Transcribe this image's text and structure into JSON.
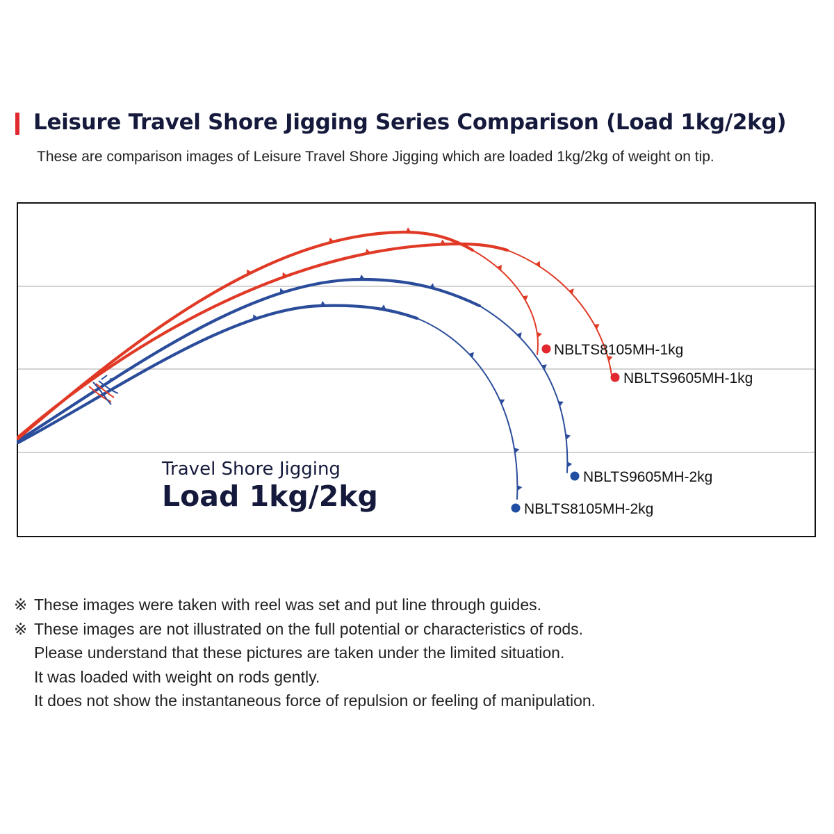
{
  "header": {
    "title": "Leisure Travel Shore Jigging Series Comparison (Load 1kg/2kg)",
    "subtitle": "These are comparison images of Leisure Travel Shore Jigging which are loaded 1kg/2kg of weight on tip.",
    "accent_color": "#e0282e"
  },
  "chart_data": {
    "type": "line",
    "grid": "horizontal",
    "caption": {
      "line1": "Travel Shore Jigging",
      "line2": "Load 1kg/2kg"
    },
    "series": [
      {
        "name": "NBLTS8105MH-1kg",
        "color": "#e03a26",
        "marker_color": "#e0282e"
      },
      {
        "name": "NBLTS9605MH-1kg",
        "color": "#e03a26",
        "marker_color": "#e0282e"
      },
      {
        "name": "NBLTS9605MH-2kg",
        "color": "#2a4c9a",
        "marker_color": "#1f4ea3"
      },
      {
        "name": "NBLTS8105MH-2kg",
        "color": "#2a4c9a",
        "marker_color": "#1f4ea3"
      }
    ]
  },
  "notes": [
    {
      "mark": "※",
      "text": "These images were taken with reel was set and put line through guides."
    },
    {
      "mark": "※",
      "text": "These images are not illustrated on the full potential or characteristics of rods."
    },
    {
      "mark": "",
      "text": "Please understand that these pictures are taken under the limited situation."
    },
    {
      "mark": "",
      "text": "It was loaded with weight on rods gently."
    },
    {
      "mark": "",
      "text": "It does not show the instantaneous force of repulsion or feeling of manipulation."
    }
  ]
}
